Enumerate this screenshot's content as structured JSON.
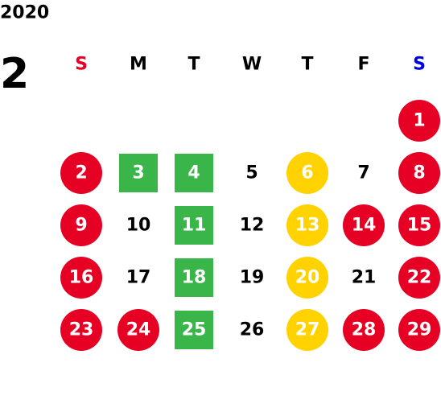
{
  "calendar": {
    "year": "2020",
    "month": "2",
    "weekdays": [
      {
        "label": "S",
        "color": "#e60023"
      },
      {
        "label": "M",
        "color": "#000000"
      },
      {
        "label": "T",
        "color": "#000000"
      },
      {
        "label": "W",
        "color": "#000000"
      },
      {
        "label": "T",
        "color": "#000000"
      },
      {
        "label": "F",
        "color": "#000000"
      },
      {
        "label": "S",
        "color": "#0000e6"
      }
    ],
    "weeks": [
      [
        null,
        null,
        null,
        null,
        null,
        null,
        {
          "day": 1,
          "shape": "circle",
          "color": "#e60023"
        }
      ],
      [
        {
          "day": 2,
          "shape": "circle",
          "color": "#e60023"
        },
        {
          "day": 3,
          "shape": "square",
          "color": "#3ab54a"
        },
        {
          "day": 4,
          "shape": "square",
          "color": "#3ab54a"
        },
        {
          "day": 5
        },
        {
          "day": 6,
          "shape": "circle",
          "color": "#ffd200"
        },
        {
          "day": 7
        },
        {
          "day": 8,
          "shape": "circle",
          "color": "#e60023"
        }
      ],
      [
        {
          "day": 9,
          "shape": "circle",
          "color": "#e60023"
        },
        {
          "day": 10
        },
        {
          "day": 11,
          "shape": "square",
          "color": "#3ab54a"
        },
        {
          "day": 12
        },
        {
          "day": 13,
          "shape": "circle",
          "color": "#ffd200"
        },
        {
          "day": 14,
          "shape": "circle",
          "color": "#e60023"
        },
        {
          "day": 15,
          "shape": "circle",
          "color": "#e60023"
        }
      ],
      [
        {
          "day": 16,
          "shape": "circle",
          "color": "#e60023"
        },
        {
          "day": 17
        },
        {
          "day": 18,
          "shape": "square",
          "color": "#3ab54a"
        },
        {
          "day": 19
        },
        {
          "day": 20,
          "shape": "circle",
          "color": "#ffd200"
        },
        {
          "day": 21
        },
        {
          "day": 22,
          "shape": "circle",
          "color": "#e60023"
        }
      ],
      [
        {
          "day": 23,
          "shape": "circle",
          "color": "#e60023"
        },
        {
          "day": 24,
          "shape": "circle",
          "color": "#e60023"
        },
        {
          "day": 25,
          "shape": "square",
          "color": "#3ab54a"
        },
        {
          "day": 26
        },
        {
          "day": 27,
          "shape": "circle",
          "color": "#ffd200"
        },
        {
          "day": 28,
          "shape": "circle",
          "color": "#e60023"
        },
        {
          "day": 29,
          "shape": "circle",
          "color": "#e60023"
        }
      ]
    ]
  }
}
